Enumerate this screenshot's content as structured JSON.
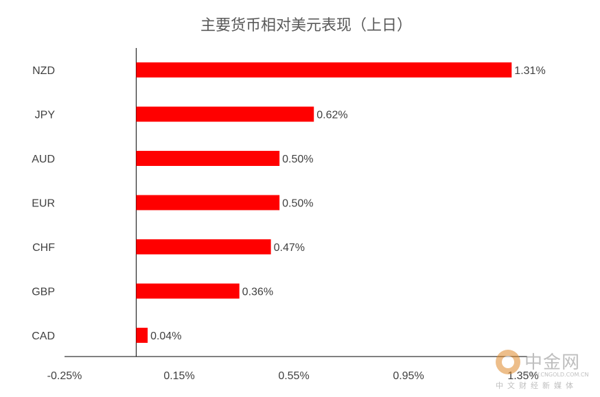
{
  "chart_data": {
    "type": "bar",
    "orientation": "horizontal",
    "title": "主要货币相对美元表现（上日）",
    "categories": [
      "NZD",
      "JPY",
      "AUD",
      "EUR",
      "CHF",
      "GBP",
      "CAD"
    ],
    "values": [
      1.31,
      0.62,
      0.5,
      0.5,
      0.47,
      0.36,
      0.04
    ],
    "data_labels": [
      "1.31%",
      "0.62%",
      "0.50%",
      "0.50%",
      "0.47%",
      "0.36%",
      "0.04%"
    ],
    "xlim": [
      -0.25,
      1.35
    ],
    "xticks": [
      -0.25,
      0.15,
      0.55,
      0.95,
      1.35
    ],
    "xtick_labels": [
      "-0.25%",
      "0.15%",
      "0.55%",
      "0.95%",
      "1.35%"
    ],
    "bar_color": "#ff0000",
    "grid": false,
    "legend": false
  },
  "watermark": {
    "name": "中金网",
    "url": "WWW.CNGOLD.COM.CN",
    "slogan": "中文财经新媒体"
  }
}
